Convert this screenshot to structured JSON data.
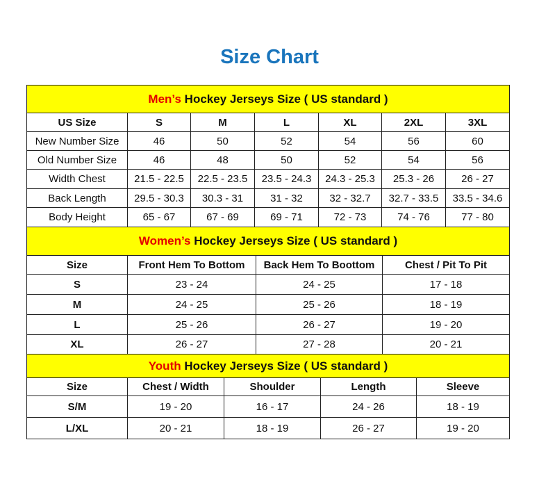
{
  "title": "Size Chart",
  "men": {
    "banner_highlight": "Men’s",
    "banner_rest": " Hockey Jerseys Size ( US standard )",
    "headers": [
      "US Size",
      "S",
      "M",
      "L",
      "XL",
      "2XL",
      "3XL"
    ],
    "rows": [
      [
        "New Number Size",
        "46",
        "50",
        "52",
        "54",
        "56",
        "60"
      ],
      [
        "Old Number Size",
        "46",
        "48",
        "50",
        "52",
        "54",
        "56"
      ],
      [
        "Width Chest",
        "21.5 - 22.5",
        "22.5 - 23.5",
        "23.5 - 24.3",
        "24.3 - 25.3",
        "25.3 - 26",
        "26 - 27"
      ],
      [
        "Back Length",
        "29.5 - 30.3",
        "30.3 - 31",
        "31 - 32",
        "32 - 32.7",
        "32.7 - 33.5",
        "33.5 - 34.6"
      ],
      [
        "Body Height",
        "65 - 67",
        "67 - 69",
        "69 - 71",
        "72 - 73",
        "74 - 76",
        "77 - 80"
      ]
    ]
  },
  "women": {
    "banner_highlight": "Women’s",
    "banner_rest": " Hockey Jerseys Size ( US standard )",
    "headers": [
      "Size",
      "Front Hem To Bottom",
      "Back Hem To Boottom",
      "Chest / Pit To Pit"
    ],
    "rows": [
      [
        "S",
        "23 - 24",
        "24 - 25",
        "17 - 18"
      ],
      [
        "M",
        "24 - 25",
        "25 - 26",
        "18 - 19"
      ],
      [
        "L",
        "25 - 26",
        "26 - 27",
        "19 - 20"
      ],
      [
        "XL",
        "26 - 27",
        "27 - 28",
        "20 - 21"
      ]
    ]
  },
  "youth": {
    "banner_highlight": "Youth",
    "banner_rest": " Hockey Jerseys Size ( US standard )",
    "headers": [
      "Size",
      "Chest / Width",
      "Shoulder",
      "Length",
      "Sleeve"
    ],
    "rows": [
      [
        "S/M",
        "19 - 20",
        "16 - 17",
        "24 - 26",
        "18 - 19"
      ],
      [
        "L/XL",
        "20 - 21",
        "18 - 19",
        "26 - 27",
        "19 - 20"
      ]
    ]
  },
  "colors": {
    "title": "#1a75bc",
    "banner": "#ffff00",
    "highlight": "#e30000"
  }
}
